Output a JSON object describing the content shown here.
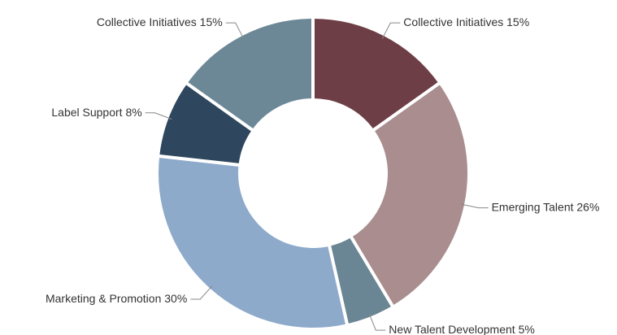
{
  "chart_data": {
    "type": "donut",
    "categories": [
      "Collective Initiatives",
      "Emerging Talent",
      "New Talent Development",
      "Marketing & Promotion",
      "Label Support",
      "Collective Initiatives"
    ],
    "values": [
      15,
      26,
      5,
      30,
      8,
      15
    ],
    "value_labels": [
      "15%",
      "26%",
      "5%",
      "30%",
      "8%",
      "15%"
    ],
    "colors": [
      "#6e3e46",
      "#a98d8f",
      "#6a8593",
      "#8eaacb",
      "#2f475e",
      "#6c8796"
    ]
  }
}
